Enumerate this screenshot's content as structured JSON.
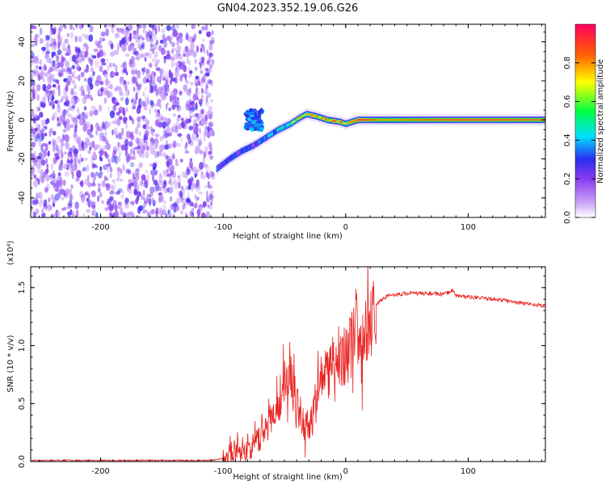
{
  "chart_data": [
    {
      "type": "heatmap",
      "title": "GN04.2023.352.19.06.G26",
      "xlabel": "Height of straight line (km)",
      "ylabel": "Frequency (Hz)",
      "xlim": [
        -257,
        163
      ],
      "ylim": [
        -50,
        49
      ],
      "xticks": [
        -200,
        -100,
        0,
        100
      ],
      "yticks": [
        -40,
        -20,
        0,
        20,
        40
      ],
      "noise_region": {
        "x": [
          -257,
          -108
        ],
        "description_level": "low"
      },
      "signal_ridge": {
        "x": [
          -105,
          -95,
          -85,
          -75,
          -65,
          -55,
          -45,
          -38,
          -32,
          -25,
          -15,
          -5,
          0,
          10,
          30,
          60,
          100,
          163
        ],
        "frequency": [
          -25,
          -20,
          -16,
          -13,
          -9,
          -5,
          -2,
          1,
          3,
          2,
          0,
          -1,
          -2,
          0,
          0,
          0,
          0,
          0
        ],
        "amplitude": [
          0.35,
          0.3,
          0.35,
          0.3,
          0.45,
          0.55,
          0.65,
          0.7,
          0.75,
          0.8,
          0.85,
          0.85,
          0.7,
          0.9,
          0.75,
          0.8,
          0.85,
          0.8
        ]
      },
      "side_blob": {
        "x": [
          -82,
          -68
        ],
        "frequency": [
          -5,
          5
        ],
        "amplitude": 0.35
      },
      "colorbar": {
        "label": "Normalized spectral amplitude",
        "range": [
          0.0,
          1.0
        ],
        "ticks": [
          "0.0",
          "0.2",
          "0.4",
          "0.6",
          "0.8"
        ],
        "colormap": [
          "#ffffff",
          "#8a3cf0",
          "#2c2cf0",
          "#00e0ff",
          "#00ff40",
          "#ffff00",
          "#ff6000",
          "#ff0060"
        ]
      }
    },
    {
      "type": "line",
      "xlabel": "Height of straight line (km)",
      "ylabel": "SNR (10 * v/v)",
      "ylabel_scale": "(x10⁴)",
      "xlim": [
        -257,
        163
      ],
      "ylim": [
        0.0,
        1.68
      ],
      "xticks": [
        -200,
        -100,
        0,
        100
      ],
      "yticks": [
        0.0,
        0.5,
        1.0,
        1.5
      ],
      "ytick_labels": [
        "0.0",
        "0.5",
        "1.0",
        "1.5"
      ],
      "color": "#e8201e",
      "series": [
        {
          "x": [
            -257,
            -200,
            -150,
            -110,
            -100,
            -95,
            -90,
            -85,
            -80,
            -75,
            -70,
            -65,
            -60,
            -55,
            -50,
            -47,
            -44,
            -41,
            -38,
            -35,
            -30,
            -25,
            -20,
            -15,
            -10,
            -5,
            0,
            5,
            8,
            10,
            12,
            15,
            20,
            25,
            30,
            35,
            40,
            50,
            60,
            70,
            80,
            88,
            90,
            100,
            110,
            120,
            130,
            140,
            150,
            163
          ],
          "y": [
            0.01,
            0.01,
            0.01,
            0.01,
            0.03,
            0.08,
            0.1,
            0.12,
            0.1,
            0.14,
            0.2,
            0.3,
            0.4,
            0.5,
            0.7,
            0.85,
            0.7,
            0.5,
            0.45,
            0.35,
            0.3,
            0.5,
            0.7,
            0.75,
            0.85,
            0.9,
            0.95,
            1.0,
            1.3,
            1.0,
            0.9,
            1.05,
            1.2,
            1.35,
            1.4,
            1.43,
            1.44,
            1.45,
            1.45,
            1.45,
            1.44,
            1.48,
            1.43,
            1.42,
            1.41,
            1.4,
            1.39,
            1.37,
            1.36,
            1.34
          ]
        }
      ]
    }
  ]
}
